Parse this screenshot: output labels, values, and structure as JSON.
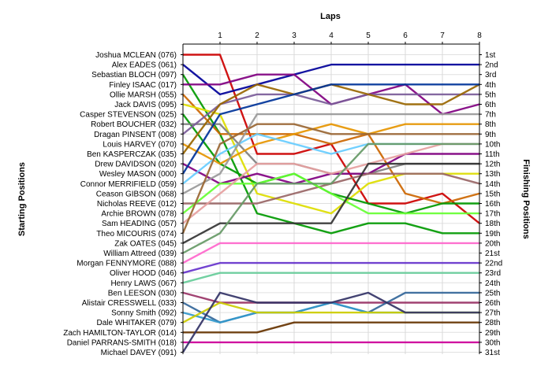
{
  "chart_data": {
    "type": "line",
    "title": "Laps",
    "ylabel_left": "Starting Positions",
    "ylabel_right": "Finishing Positions",
    "x": [
      0,
      1,
      2,
      3,
      4,
      5,
      6,
      7,
      8
    ],
    "x_tick_labels": [
      "1",
      "2",
      "3",
      "4",
      "5",
      "6",
      "7",
      "8"
    ],
    "finishing_labels": [
      "1st",
      "2nd",
      "3rd",
      "4th",
      "5th",
      "6th",
      "7th",
      "8th",
      "9th",
      "10th",
      "11th",
      "12th",
      "13th",
      "14th",
      "15th",
      "16th",
      "17th",
      "18th",
      "19th",
      "20th",
      "21st",
      "22nd",
      "23rd",
      "24th",
      "25th",
      "26th",
      "27th",
      "28th",
      "29th",
      "30th",
      "31st"
    ],
    "grid": true,
    "y_reversed": true,
    "series": [
      {
        "name": "Joshua MCLEAN (076)",
        "color": "#cc0000",
        "values": [
          1,
          1,
          11,
          11,
          10,
          16,
          16,
          15,
          18
        ]
      },
      {
        "name": "Alex EADES (061)",
        "color": "#000099",
        "values": [
          2,
          5,
          4,
          3,
          2,
          2,
          2,
          2,
          2
        ]
      },
      {
        "name": "Sebastian BLOCH (097)",
        "color": "#009900",
        "values": [
          3,
          9,
          17,
          18,
          19,
          18,
          18,
          19,
          19
        ]
      },
      {
        "name": "Finley ISAAC (017)",
        "color": "#800080",
        "values": [
          4,
          4,
          3,
          3,
          6,
          5,
          4,
          7,
          6
        ]
      },
      {
        "name": "Ollie MARSH (055)",
        "color": "#cc6600",
        "values": [
          5,
          9,
          9,
          9,
          10,
          9,
          15,
          16,
          15
        ]
      },
      {
        "name": "Jack DAVIS (095)",
        "color": "#dddd00",
        "values": [
          6,
          7,
          15,
          16,
          17,
          14,
          13,
          13,
          13
        ]
      },
      {
        "name": "Casper STEVENSON (025)",
        "color": "#009900",
        "values": [
          7,
          12,
          14,
          13,
          15,
          16,
          17,
          16,
          16
        ]
      },
      {
        "name": "Robert BOUCHER (032)",
        "color": "#7f7f7f",
        "values": [
          8,
          8,
          12,
          12,
          13,
          13,
          12,
          12,
          12
        ]
      },
      {
        "name": "Dragan PINSENT (008)",
        "color": "#7b5c99",
        "values": [
          9,
          6,
          5,
          5,
          6,
          5,
          5,
          5,
          5
        ]
      },
      {
        "name": "Louis HARVEY (070)",
        "color": "#e69500",
        "values": [
          10,
          12,
          10,
          9,
          8,
          9,
          8,
          8,
          8
        ]
      },
      {
        "name": "Ben KASPERCZAK (035)",
        "color": "#996600",
        "values": [
          11,
          6,
          4,
          5,
          4,
          5,
          6,
          6,
          4
        ]
      },
      {
        "name": "Drew DAVIDSON (020)",
        "color": "#800080",
        "values": [
          12,
          14,
          13,
          14,
          13,
          13,
          11,
          11,
          11
        ]
      },
      {
        "name": "Wesley MASON (000)",
        "color": "#003399",
        "values": [
          13,
          7,
          6,
          5,
          4,
          4,
          4,
          4,
          4
        ]
      },
      {
        "name": "Connor MERRIFIELD (059)",
        "color": "#66ccff",
        "values": [
          14,
          11,
          9,
          10,
          11,
          10,
          10,
          10,
          10
        ]
      },
      {
        "name": "Ceason GIBSON (068)",
        "color": "#999999",
        "values": [
          15,
          13,
          7,
          7,
          7,
          7,
          7,
          7,
          7
        ]
      },
      {
        "name": "Nicholas REEVE (012)",
        "color": "#996666",
        "values": [
          16,
          16,
          16,
          15,
          14,
          13,
          13,
          13,
          14
        ]
      },
      {
        "name": "Archie BROWN (078)",
        "color": "#66ff33",
        "values": [
          17,
          14,
          14,
          13,
          15,
          17,
          17,
          17,
          17
        ]
      },
      {
        "name": "Sam HEADING (057)",
        "color": "#e6a0a0",
        "values": [
          18,
          15,
          12,
          12,
          13,
          12,
          11,
          10,
          10
        ]
      },
      {
        "name": "Theo MICOURIS (074)",
        "color": "#996633",
        "values": [
          19,
          10,
          8,
          8,
          9,
          9,
          9,
          9,
          9
        ]
      },
      {
        "name": "Zak OATES (045)",
        "color": "#333333",
        "values": [
          20,
          18,
          18,
          18,
          18,
          12,
          12,
          12,
          12
        ]
      },
      {
        "name": "William Attreed (039)",
        "color": "#669966",
        "values": [
          21,
          19,
          14,
          14,
          14,
          10,
          10,
          10,
          10
        ]
      },
      {
        "name": "Morgan FENNYMORE (088)",
        "color": "#ff66cc",
        "values": [
          22,
          20,
          20,
          20,
          20,
          20,
          20,
          20,
          20
        ]
      },
      {
        "name": "Oliver HOOD (046)",
        "color": "#6633cc",
        "values": [
          23,
          22,
          22,
          22,
          22,
          22,
          22,
          22,
          22
        ]
      },
      {
        "name": "Henry LAWS (067)",
        "color": "#66cc99",
        "values": [
          24,
          23,
          23,
          23,
          23,
          23,
          23,
          23,
          23
        ]
      },
      {
        "name": "Ben LEESON (030)",
        "color": "#993366",
        "values": [
          25,
          26,
          26,
          26,
          26,
          26,
          26,
          26,
          26
        ]
      },
      {
        "name": "Alistair CRESSWELL (033)",
        "color": "#336699",
        "values": [
          26,
          28,
          27,
          27,
          26,
          27,
          25,
          25,
          25
        ]
      },
      {
        "name": "Sonny Smith (092)",
        "color": "#3399cc",
        "values": [
          27,
          28,
          27,
          27,
          26,
          27,
          27,
          27,
          27
        ]
      },
      {
        "name": "Dale WHITAKER (079)",
        "color": "#cccc00",
        "values": [
          28,
          26,
          27,
          27,
          27,
          27,
          27,
          27,
          27
        ]
      },
      {
        "name": "Zach HAMILTON-TAYLOR (014)",
        "color": "#663300",
        "values": [
          29,
          29,
          29,
          28,
          28,
          28,
          28,
          28,
          28
        ]
      },
      {
        "name": "Daniel PARRANS-SMITH (018)",
        "color": "#cc0099",
        "values": [
          30,
          30,
          30,
          30,
          30,
          30,
          30,
          30,
          30
        ]
      },
      {
        "name": "Michael DAVEY (091)",
        "color": "#333366",
        "values": [
          31,
          25,
          26,
          26,
          26,
          25,
          27,
          27,
          27
        ]
      }
    ]
  }
}
